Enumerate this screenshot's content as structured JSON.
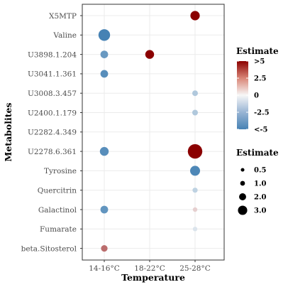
{
  "chart_data": {
    "type": "scatter",
    "title": "",
    "xlabel": "Temperature",
    "ylabel": "Metabolites",
    "x_categories": [
      "14-16°C",
      "18-22°C",
      "25-28°C"
    ],
    "y_categories": [
      "X5MTP",
      "Valine",
      "U3898.1.204",
      "U3041.1.361",
      "U3008.3.457",
      "U2400.1.179",
      "U2282.4.349",
      "U2278.6.361",
      "Tyrosine",
      "Quercitrin",
      "Galactinol",
      "Fumarate",
      "beta.Sitosterol"
    ],
    "grid": true,
    "points": [
      {
        "x": "25-28°C",
        "y": "X5MTP",
        "estimate": 5.5,
        "size": 2.2
      },
      {
        "x": "14-16°C",
        "y": "Valine",
        "estimate": -5.0,
        "size": 3.0
      },
      {
        "x": "14-16°C",
        "y": "U3898.1.204",
        "estimate": -4.0,
        "size": 1.6
      },
      {
        "x": "18-22°C",
        "y": "U3898.1.204",
        "estimate": 6.0,
        "size": 2.0
      },
      {
        "x": "14-16°C",
        "y": "U3041.1.361",
        "estimate": -4.5,
        "size": 1.6
      },
      {
        "x": "25-28°C",
        "y": "U3008.3.457",
        "estimate": -2.0,
        "size": 0.9
      },
      {
        "x": "25-28°C",
        "y": "U2400.1.179",
        "estimate": -2.0,
        "size": 0.9
      },
      {
        "x": "14-16°C",
        "y": "U2278.6.361",
        "estimate": -4.5,
        "size": 2.0
      },
      {
        "x": "25-28°C",
        "y": "U2278.6.361",
        "estimate": 6.0,
        "size": 4.0
      },
      {
        "x": "25-28°C",
        "y": "Tyrosine",
        "estimate": -4.8,
        "size": 2.4
      },
      {
        "x": "25-28°C",
        "y": "Quercitrin",
        "estimate": -1.6,
        "size": 0.7
      },
      {
        "x": "14-16°C",
        "y": "Galactinol",
        "estimate": -4.2,
        "size": 1.6
      },
      {
        "x": "25-28°C",
        "y": "Galactinol",
        "estimate": 0.8,
        "size": 0.5
      },
      {
        "x": "25-28°C",
        "y": "Fumarate",
        "estimate": -0.8,
        "size": 0.5
      },
      {
        "x": "14-16°C",
        "y": "beta.Sitosterol",
        "estimate": 2.8,
        "size": 1.2
      }
    ],
    "color_legend": {
      "title": "Estimate",
      "labels": [
        ">5",
        "2.5",
        "0",
        "-2.5",
        "<-5"
      ],
      "values": [
        5,
        2.5,
        0,
        -2.5,
        -5
      ],
      "high_color": "#8b0000",
      "mid_color": "#f7f7f7",
      "low_color": "#4682b4"
    },
    "size_legend": {
      "title": "Estimate",
      "labels": [
        "0.5",
        "1.0",
        "2.0",
        "3.0"
      ],
      "values": [
        0.5,
        1.0,
        2.0,
        3.0
      ]
    }
  }
}
